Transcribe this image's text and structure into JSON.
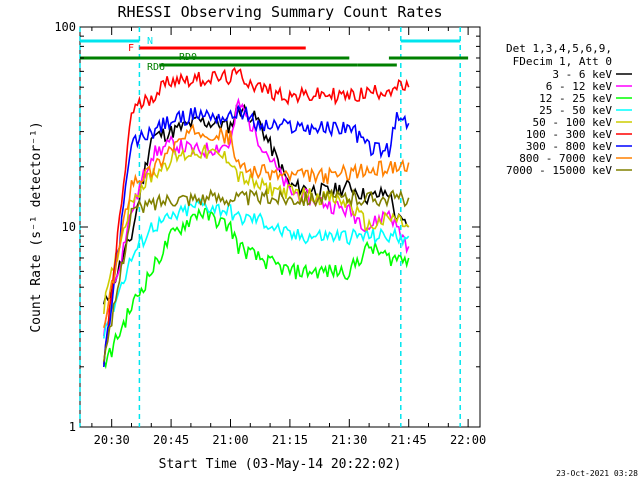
{
  "chart_data": {
    "type": "line",
    "title": "RHESSI Observing Summary Count Rates",
    "xlabel": "Start Time (03-May-14 20:22:02)",
    "ylabel": "Count Rate (s⁻¹ detector⁻¹)",
    "yscale": "log",
    "ylim": [
      1,
      100
    ],
    "xlim": [
      "20:22",
      "22:03"
    ],
    "x_ticks": [
      "20:30",
      "20:45",
      "21:00",
      "21:15",
      "21:30",
      "21:45",
      "22:00"
    ],
    "y_ticks": [
      "1",
      "10",
      "100"
    ],
    "legend_title": [
      "Det 1,3,4,5,6,9,",
      "FDecim 1, Att 0"
    ],
    "legend_position": "right",
    "date_stamp": "23-Oct-2021 03:28",
    "flag_labels": [
      "N",
      "F",
      "RD0",
      "RD6"
    ],
    "flags": [
      {
        "label": "N",
        "color": "#00e5ee",
        "segments": [
          [
            "20:22",
            "20:37"
          ],
          [
            "21:43",
            "21:58"
          ]
        ]
      },
      {
        "label": "F",
        "color": "#ff0000",
        "segments": [
          [
            "20:37",
            "21:19"
          ]
        ]
      },
      {
        "label": "RD0",
        "color": "#008000",
        "segments": [
          [
            "20:22",
            "21:30"
          ],
          [
            "21:40",
            "22:00"
          ]
        ]
      },
      {
        "label": "RD6",
        "color": "#008000",
        "segments": [
          [
            "20:42",
            "21:32"
          ],
          [
            "21:32",
            "21:42"
          ]
        ]
      }
    ],
    "night_lines": [
      "20:22",
      "20:37",
      "21:43",
      "21:58"
    ],
    "x": [
      "20:28",
      "20:35",
      "20:40",
      "20:45",
      "20:52",
      "21:00",
      "21:02",
      "21:07",
      "21:15",
      "21:25",
      "21:30",
      "21:35",
      "21:40",
      "21:42",
      "21:45"
    ],
    "series": [
      {
        "name": "3 - 6 keV",
        "color": "#000000",
        "values": [
          4,
          9,
          28,
          30,
          34,
          32,
          40,
          34,
          16,
          15,
          16,
          14,
          15,
          11,
          10
        ]
      },
      {
        "name": "6 - 12 keV",
        "color": "#ff00ff",
        "values": [
          3,
          12,
          23,
          26,
          24,
          26,
          42,
          28,
          15,
          13,
          12,
          10,
          12,
          10,
          8
        ]
      },
      {
        "name": "12 - 25 keV",
        "color": "#00ff00",
        "values": [
          2,
          4,
          6,
          9,
          12,
          10,
          8,
          7,
          6,
          6,
          6,
          8,
          7,
          7,
          7
        ]
      },
      {
        "name": "25 - 50 keV",
        "color": "#00ffff",
        "values": [
          3,
          7,
          10,
          11,
          13,
          12,
          11,
          11,
          9,
          9,
          9,
          9,
          9,
          9,
          9
        ]
      },
      {
        "name": "50 - 100 keV",
        "color": "#cccc00",
        "values": [
          4,
          14,
          18,
          22,
          24,
          22,
          18,
          16,
          15,
          14,
          13,
          10,
          11,
          11,
          10
        ]
      },
      {
        "name": "100 - 300 keV",
        "color": "#ff0000",
        "values": [
          2,
          38,
          45,
          55,
          55,
          56,
          58,
          50,
          45,
          46,
          45,
          47,
          49,
          50,
          50
        ]
      },
      {
        "name": "300 - 800 keV",
        "color": "#0000ff",
        "values": [
          2,
          26,
          30,
          34,
          37,
          35,
          39,
          32,
          32,
          31,
          32,
          25,
          24,
          35,
          33
        ]
      },
      {
        "name": "800 - 7000 keV",
        "color": "#ff8000",
        "values": [
          3,
          17,
          19,
          25,
          31,
          28,
          20,
          19,
          18,
          18,
          19,
          19,
          20,
          20,
          21
        ]
      },
      {
        "name": "7000 - 15000 keV",
        "color": "#808000",
        "values": [
          2,
          12,
          13,
          14,
          14,
          14,
          14,
          14,
          14,
          14,
          14,
          14,
          14,
          14,
          14
        ]
      }
    ]
  }
}
